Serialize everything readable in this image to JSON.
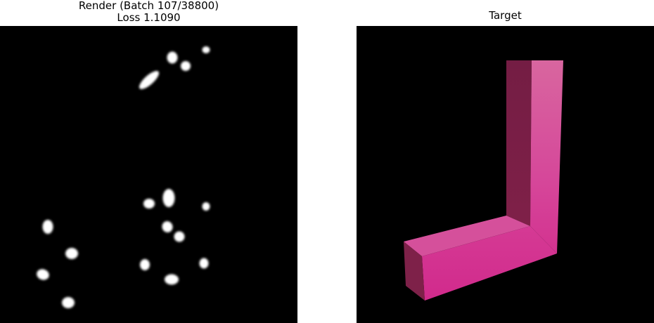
{
  "render": {
    "title_line1": "Render (Batch 107/38800)",
    "title_line2": "Loss 1.1090"
  },
  "target": {
    "title": "Target"
  },
  "colors": {
    "background": "#ffffff",
    "panel": "#000000",
    "blob": "#ffffff",
    "shape_front": "#d42f8f",
    "shape_top": "#d6509b",
    "shape_dark": "#7a1f45"
  }
}
